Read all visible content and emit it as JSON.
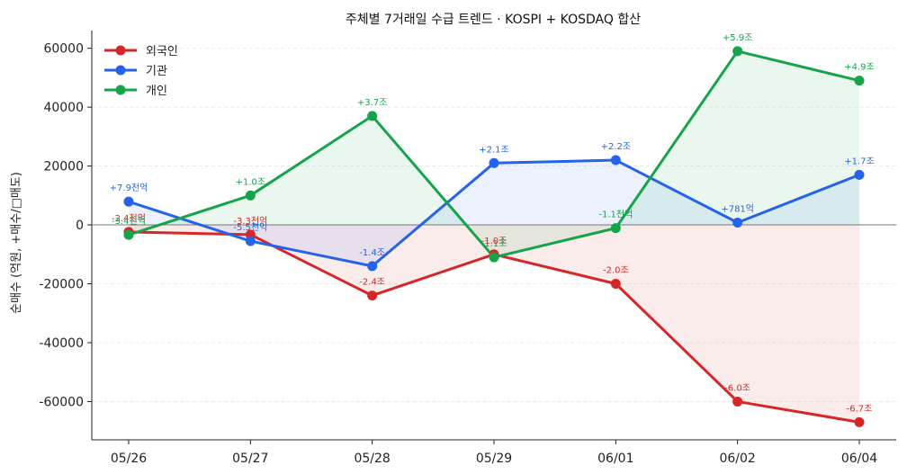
{
  "chart_data": {
    "type": "line",
    "title": "주체별 7거래일 수급 트렌드 · KOSPI + KOSDAQ 합산",
    "xlabel": "",
    "ylabel": "순매수 (억원, +매수/□매도)",
    "categories": [
      "05/26",
      "05/27",
      "05/28",
      "05/29",
      "06/01",
      "06/02",
      "06/04"
    ],
    "ylim": [
      -73000,
      66000
    ],
    "yticks": [
      -60000,
      -40000,
      -20000,
      0,
      20000,
      40000,
      60000
    ],
    "ytick_labels": [
      "-60000",
      "-40000",
      "-20000",
      "0",
      "20000",
      "40000",
      "60000"
    ],
    "grid": true,
    "legend": "top-left",
    "series": [
      {
        "name": "외국인",
        "color": "#d62728",
        "values": [
          -2400,
          -3300,
          -24000,
          -10000,
          -20000,
          -60000,
          -67000
        ],
        "labels": [
          "-2.4천억",
          "-3.3천억",
          "-2.4조",
          "-1.0조",
          "-2.0조",
          "-6.0조",
          "-6.7조"
        ]
      },
      {
        "name": "기관",
        "color": "#2563eb",
        "values": [
          7900,
          -5500,
          -14000,
          21000,
          22000,
          781,
          17000
        ],
        "labels": [
          "+7.9천억",
          "-5.5천억",
          "-1.4조",
          "+2.1조",
          "+2.2조",
          "+781억",
          "+1.7조"
        ]
      },
      {
        "name": "개인",
        "color": "#16a34a",
        "values": [
          -3400,
          10000,
          37000,
          -11000,
          -1100,
          59000,
          49000
        ],
        "labels": [
          "-3.4천억",
          "+1.0조",
          "+3.7조",
          "-1.1조",
          "-1.1천억",
          "+5.9조",
          "+4.9조"
        ]
      }
    ]
  }
}
